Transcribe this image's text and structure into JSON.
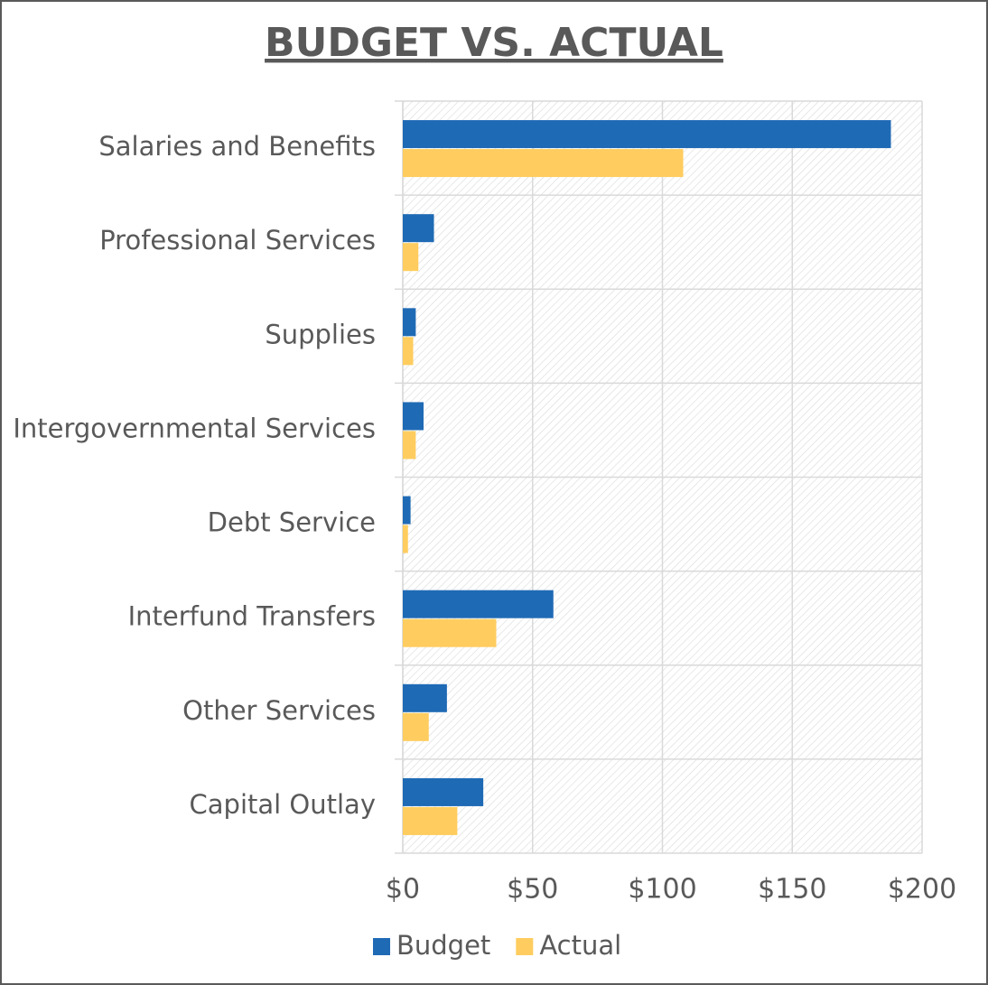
{
  "chart_data": {
    "type": "hbar",
    "title": "BUDGET VS. ACTUAL",
    "categories": [
      "Salaries and Benefits",
      "Professional Services",
      "Supplies",
      "Intergovernmental Services",
      "Debt Service",
      "Interfund Transfers",
      "Other Services",
      "Capital Outlay"
    ],
    "series": [
      {
        "name": "Budget",
        "color": "#1f6ab5",
        "values": [
          188,
          12,
          5,
          8,
          3,
          58,
          17,
          31
        ]
      },
      {
        "name": "Actual",
        "color": "#ffcd5f",
        "values": [
          108,
          6,
          4,
          5,
          2,
          36,
          10,
          21
        ]
      }
    ],
    "xlim": [
      0,
      200
    ],
    "xticks": [
      {
        "value": 0,
        "label": "$0"
      },
      {
        "value": 50,
        "label": "$50"
      },
      {
        "value": 100,
        "label": "$100"
      },
      {
        "value": 150,
        "label": "$150"
      },
      {
        "value": 200,
        "label": "$200"
      }
    ],
    "grid": true,
    "legend": "bottom"
  }
}
